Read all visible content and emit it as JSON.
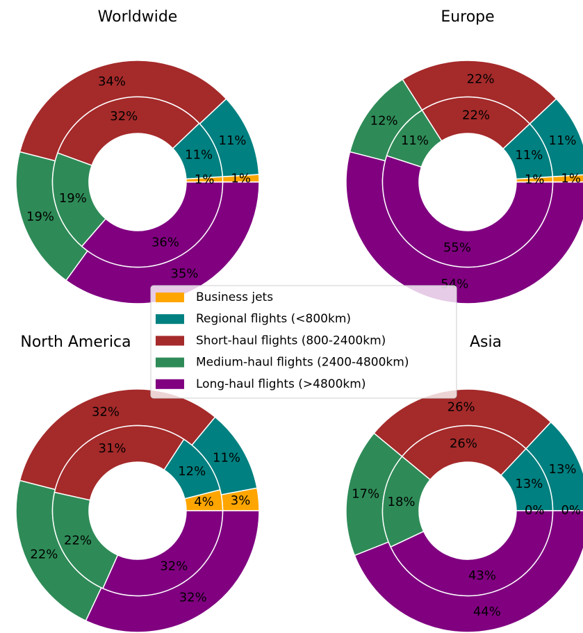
{
  "chart_data": [
    {
      "type": "donut",
      "title": "Worldwide",
      "categories": [
        "Business jets",
        "Regional flights (<800km)",
        "Short-haul flights (800-2400km)",
        "Medium-haul flights (2400-4800km)",
        "Long-haul flights (>4800km)"
      ],
      "colors": [
        "#ffa500",
        "#008080",
        "#a52a2a",
        "#2e8b57",
        "#800080"
      ],
      "series": [
        {
          "values": [
            1,
            11,
            34,
            19,
            35
          ],
          "value_labels": [
            "1%",
            "11%",
            "34%",
            "19%",
            "35%"
          ]
        },
        {
          "values": [
            1,
            11,
            32,
            19,
            36
          ],
          "value_labels": [
            "1%",
            "11%",
            "32%",
            "19%",
            "36%"
          ]
        }
      ]
    },
    {
      "type": "donut",
      "title": "Europe",
      "categories": [
        "Business jets",
        "Regional flights (<800km)",
        "Short-haul flights (800-2400km)",
        "Medium-haul flights (2400-4800km)",
        "Long-haul flights (>4800km)"
      ],
      "colors": [
        "#ffa500",
        "#008080",
        "#a52a2a",
        "#2e8b57",
        "#800080"
      ],
      "series": [
        {
          "values": [
            1,
            11,
            22,
            12,
            54
          ],
          "value_labels": [
            "1%",
            "11%",
            "22%",
            "12%",
            "54%"
          ]
        },
        {
          "values": [
            1,
            11,
            22,
            11,
            55
          ],
          "value_labels": [
            "1%",
            "11%",
            "22%",
            "11%",
            "55%"
          ]
        }
      ]
    },
    {
      "type": "donut",
      "title": "North America",
      "categories": [
        "Business jets",
        "Regional flights (<800km)",
        "Short-haul flights (800-2400km)",
        "Medium-haul flights (2400-4800km)",
        "Long-haul flights (>4800km)"
      ],
      "colors": [
        "#ffa500",
        "#008080",
        "#a52a2a",
        "#2e8b57",
        "#800080"
      ],
      "series": [
        {
          "values": [
            3,
            11,
            32,
            22,
            32
          ],
          "value_labels": [
            "3%",
            "11%",
            "32%",
            "22%",
            "32%"
          ]
        },
        {
          "values": [
            4,
            12,
            31,
            22,
            32
          ],
          "value_labels": [
            "4%",
            "12%",
            "31%",
            "22%",
            "32%"
          ]
        }
      ]
    },
    {
      "type": "donut",
      "title": "Asia",
      "categories": [
        "Business jets",
        "Regional flights (<800km)",
        "Short-haul flights (800-2400km)",
        "Medium-haul flights (2400-4800km)",
        "Long-haul flights (>4800km)"
      ],
      "colors": [
        "#ffa500",
        "#008080",
        "#a52a2a",
        "#2e8b57",
        "#800080"
      ],
      "series": [
        {
          "values": [
            0,
            13,
            26,
            17,
            44
          ],
          "value_labels": [
            "0%",
            "13%",
            "26%",
            "17%",
            "44%"
          ]
        },
        {
          "values": [
            0,
            13,
            26,
            18,
            43
          ],
          "value_labels": [
            "0%",
            "13%",
            "26%",
            "18%",
            "43%"
          ]
        }
      ]
    }
  ]
}
